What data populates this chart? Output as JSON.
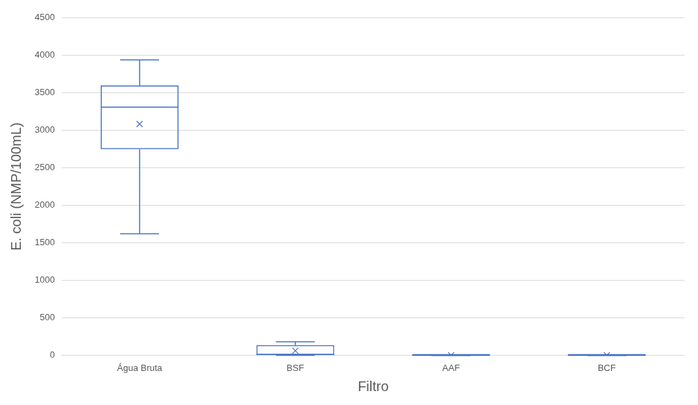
{
  "chart_data": {
    "type": "box",
    "xlabel": "Filtro",
    "ylabel": "E. coli (NMP/100mL)",
    "categories": [
      "Água Bruta",
      "BSF",
      "AAF",
      "BCF"
    ],
    "color": "#4472c4",
    "ylim": [
      0,
      4500
    ],
    "yticks": [
      0,
      500,
      1000,
      1500,
      2000,
      2500,
      3000,
      3500,
      4000,
      4500
    ],
    "grid": "y",
    "legend": false,
    "boxes": [
      {
        "low": 1620,
        "q1": 2750,
        "median": 3310,
        "q3": 3600,
        "high": 3940,
        "mean": 3085
      },
      {
        "low": 0,
        "q1": 0,
        "median": 10,
        "q3": 135,
        "high": 180,
        "mean": 60
      },
      {
        "low": 0,
        "q1": 0,
        "median": 0,
        "q3": 0,
        "high": 0,
        "mean": 0
      },
      {
        "low": 0,
        "q1": 0,
        "median": 0,
        "q3": 0,
        "high": 0,
        "mean": 0
      }
    ]
  }
}
